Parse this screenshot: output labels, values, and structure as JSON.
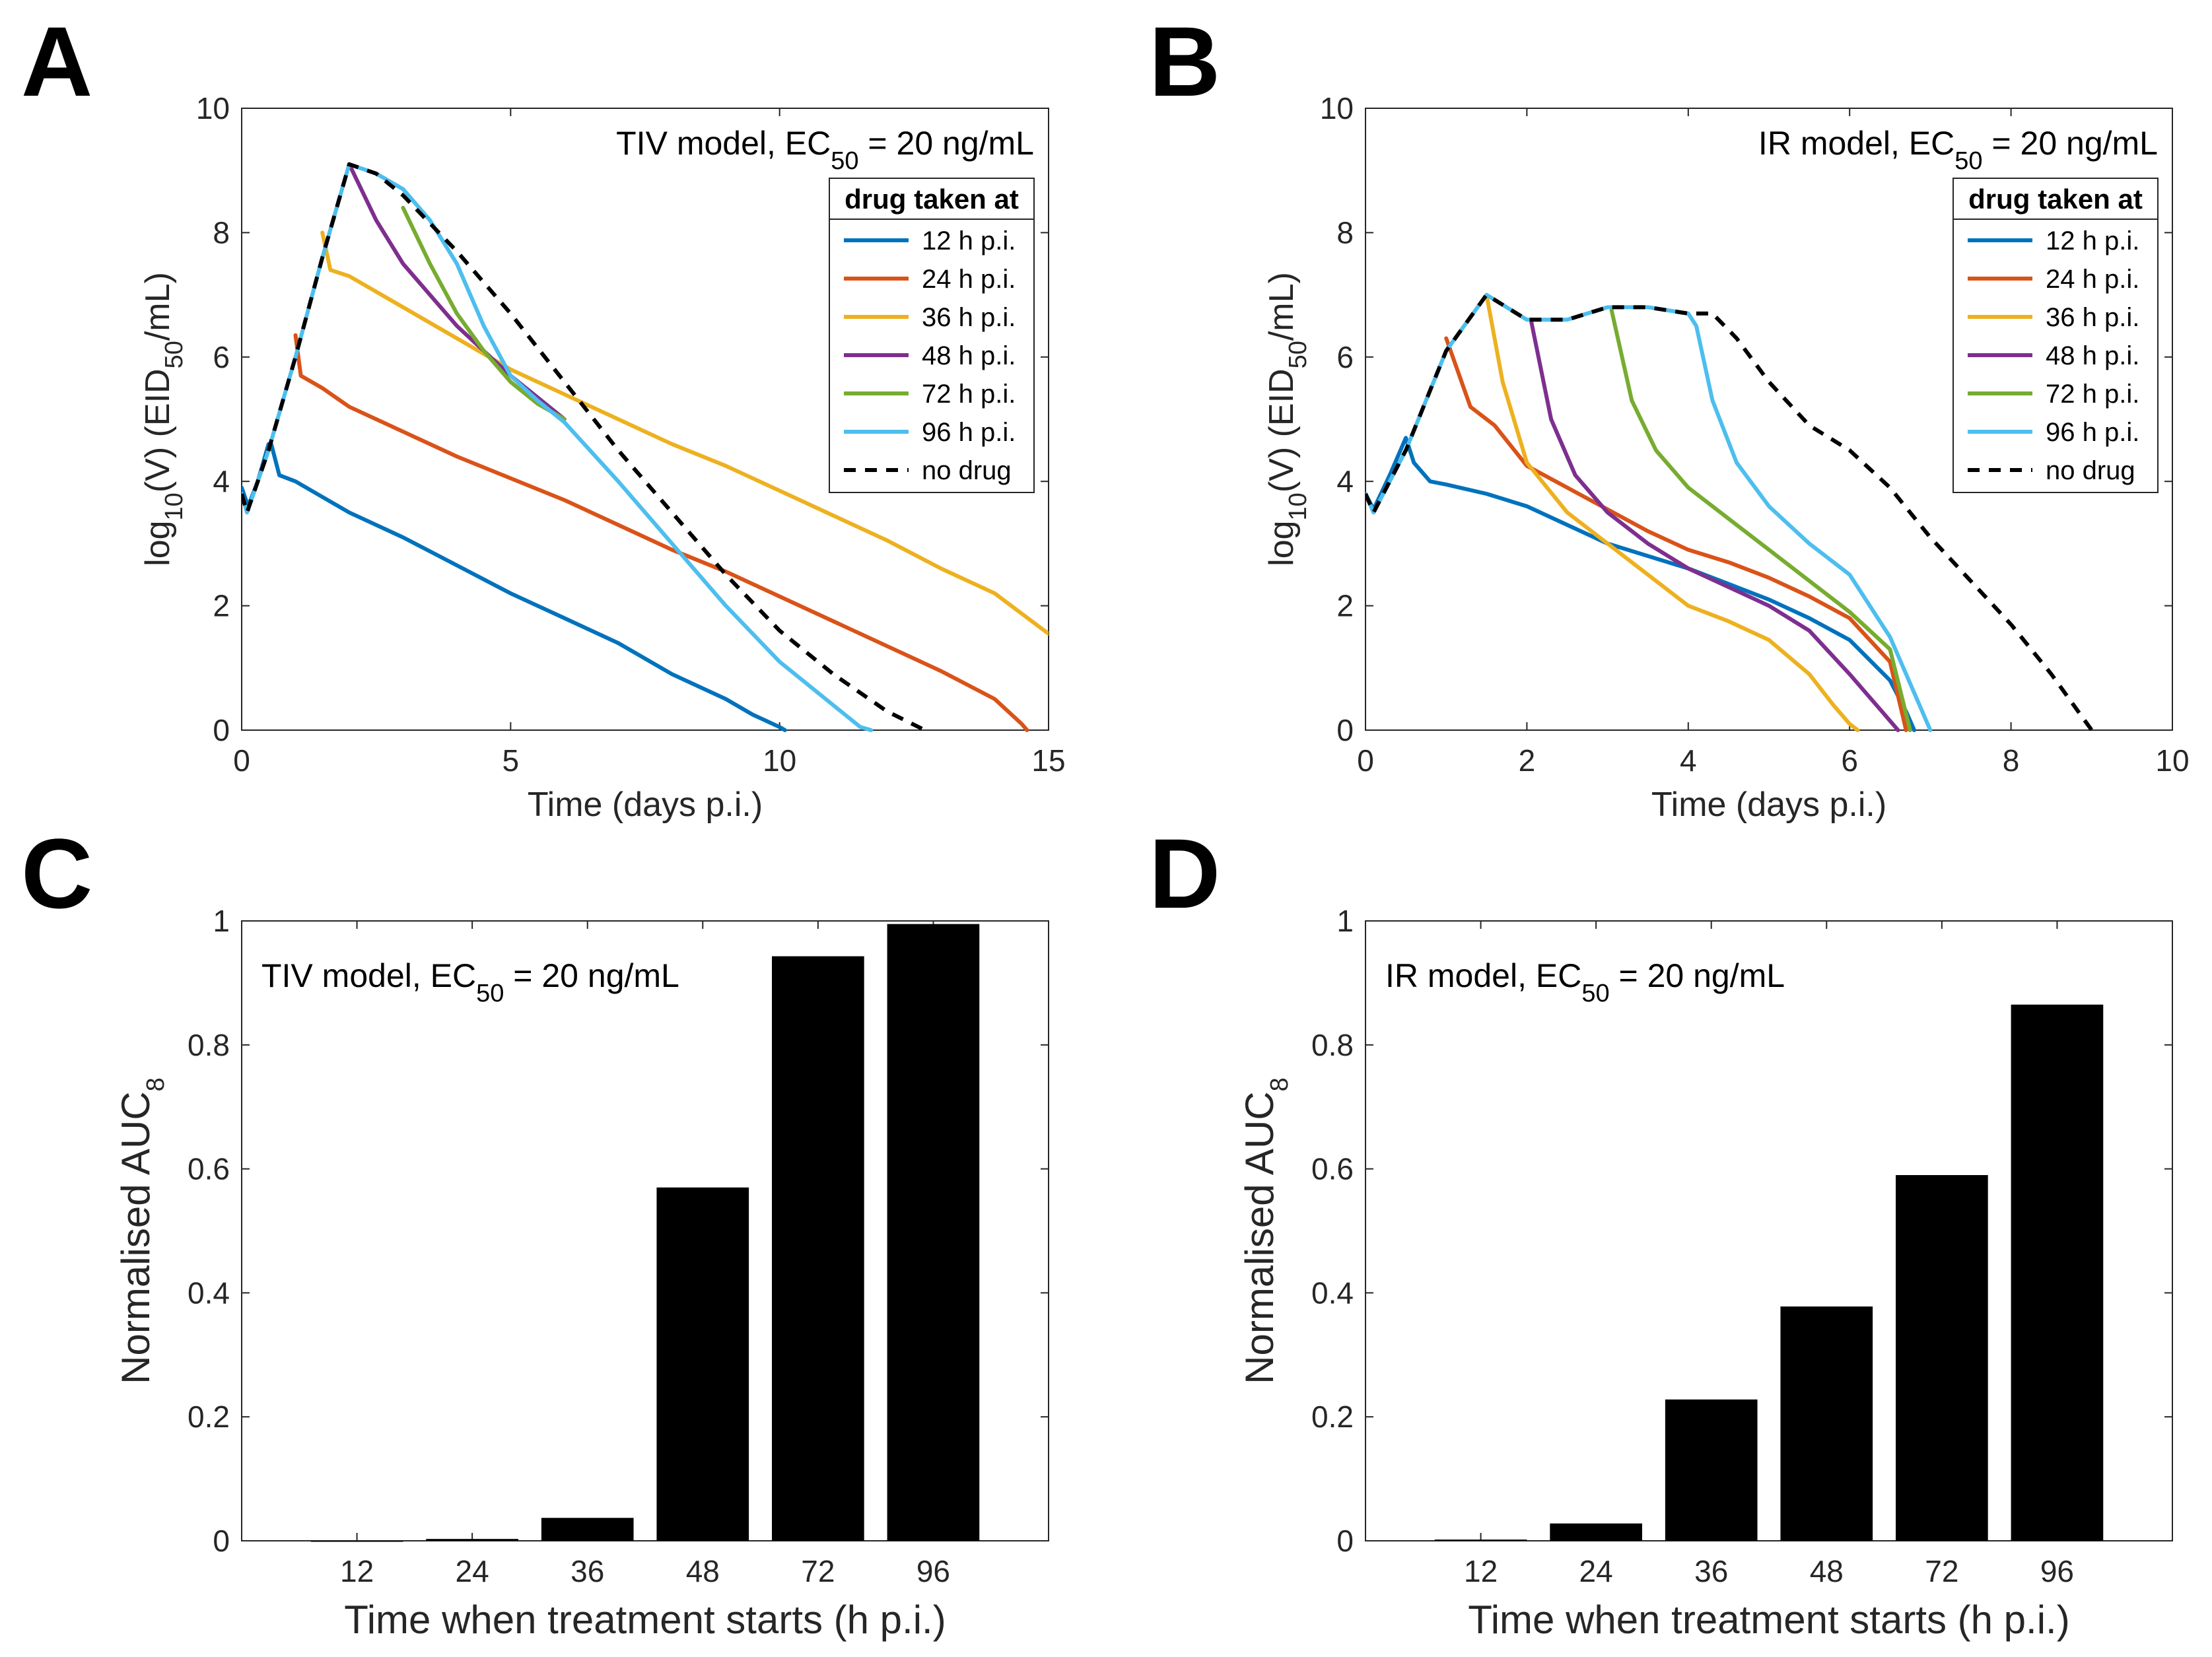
{
  "panel_labels": [
    "A",
    "B",
    "C",
    "D"
  ],
  "chart_data": [
    {
      "id": "A",
      "type": "line",
      "annotation": {
        "pre": "TIV model, EC",
        "sub": "50",
        "post": " = 20 ng/mL"
      },
      "xlabel": "Time (days p.i.)",
      "ylabel": {
        "pre": "log",
        "sub1": "10",
        "mid": "(V) (EID",
        "sub2": "50",
        "post": "/mL)"
      },
      "xlim": [
        0,
        15
      ],
      "ylim": [
        0,
        10
      ],
      "xticks": [
        0,
        5,
        10,
        15
      ],
      "yticks": [
        0,
        2,
        4,
        6,
        8,
        10
      ],
      "legend": {
        "title": "drug taken at",
        "position": "upper-right"
      },
      "series": [
        {
          "name": "12 h p.i.",
          "color": "#0072BD",
          "dash": false,
          "x": [
            0,
            0.12,
            0.3,
            0.5,
            0.55,
            0.7,
            1,
            2,
            3,
            4,
            5,
            6,
            7,
            8,
            9,
            9.5,
            10,
            10.1
          ],
          "y": [
            3.9,
            3.6,
            4,
            4.6,
            4.6,
            4.1,
            4,
            3.5,
            3.1,
            2.65,
            2.2,
            1.8,
            1.4,
            0.9,
            0.5,
            0.25,
            0.05,
            0
          ]
        },
        {
          "name": "24 h p.i.",
          "color": "#D95319",
          "dash": false,
          "x": [
            1,
            1.1,
            1.5,
            2,
            3,
            4,
            5,
            6,
            7,
            8,
            9,
            10,
            11,
            12,
            13,
            14,
            14.5,
            14.6
          ],
          "y": [
            6.35,
            5.7,
            5.5,
            5.2,
            4.8,
            4.4,
            4.05,
            3.7,
            3.3,
            2.9,
            2.55,
            2.15,
            1.75,
            1.35,
            0.95,
            0.5,
            0.1,
            0
          ]
        },
        {
          "name": "36 h p.i.",
          "color": "#EDB120",
          "dash": false,
          "x": [
            1.5,
            1.65,
            2,
            3,
            4,
            5,
            6,
            7,
            8,
            9,
            10,
            11,
            12,
            13,
            14,
            15
          ],
          "y": [
            8,
            7.4,
            7.3,
            6.8,
            6.3,
            5.8,
            5.4,
            5.0,
            4.6,
            4.25,
            3.85,
            3.45,
            3.05,
            2.6,
            2.2,
            1.55
          ]
        },
        {
          "name": "48 h p.i.",
          "color": "#7E2F8E",
          "dash": false,
          "x": [
            2,
            2.5,
            3,
            3.5,
            4,
            4.5,
            5,
            5.5,
            6
          ],
          "y": [
            9.1,
            8.2,
            7.5,
            7.0,
            6.5,
            6.1,
            5.7,
            5.35,
            5.0
          ]
        },
        {
          "name": "72 h p.i.",
          "color": "#77AC30",
          "dash": false,
          "x": [
            3,
            3.5,
            4,
            4.5,
            5,
            5.5,
            6
          ],
          "y": [
            8.4,
            7.5,
            6.7,
            6.1,
            5.6,
            5.25,
            5.0
          ]
        },
        {
          "name": "96 h p.i.",
          "color": "#4DBEEE",
          "dash": false,
          "x": [
            0,
            0.1,
            0.5,
            1,
            1.5,
            2,
            2.5,
            3,
            3.5,
            4,
            4.5,
            5,
            5.5,
            6,
            7,
            8,
            9,
            10,
            11,
            11.5,
            11.7
          ],
          "y": [
            3.8,
            3.5,
            4.5,
            6,
            7.6,
            9.1,
            8.95,
            8.7,
            8.2,
            7.5,
            6.5,
            5.7,
            5.3,
            4.95,
            4.0,
            3.0,
            2.0,
            1.1,
            0.4,
            0.05,
            0
          ]
        },
        {
          "name": "no drug",
          "color": "#000000",
          "dash": true,
          "x": [
            0,
            0.1,
            0.5,
            1,
            1.5,
            2,
            2.5,
            3,
            3.5,
            4,
            5,
            6,
            7,
            8,
            9,
            10,
            11,
            12,
            12.7
          ],
          "y": [
            3.8,
            3.5,
            4.5,
            6,
            7.6,
            9.1,
            8.95,
            8.6,
            8.15,
            7.7,
            6.7,
            5.6,
            4.5,
            3.5,
            2.5,
            1.6,
            0.9,
            0.3,
            0
          ]
        }
      ]
    },
    {
      "id": "B",
      "type": "line",
      "annotation": {
        "pre": "IR model, EC",
        "sub": "50",
        "post": " = 20 ng/mL"
      },
      "xlabel": "Time (days p.i.)",
      "ylabel": {
        "pre": "log",
        "sub1": "10",
        "mid": "(V) (EID",
        "sub2": "50",
        "post": "/mL)"
      },
      "xlim": [
        0,
        10
      ],
      "ylim": [
        0,
        10
      ],
      "xticks": [
        0,
        2,
        4,
        6,
        8,
        10
      ],
      "yticks": [
        0,
        2,
        4,
        6,
        8,
        10
      ],
      "legend": {
        "title": "drug taken at",
        "position": "upper-right"
      },
      "series": [
        {
          "name": "12 h p.i.",
          "color": "#0072BD",
          "dash": false,
          "x": [
            0,
            0.1,
            0.3,
            0.5,
            0.6,
            0.8,
            1,
            1.5,
            2,
            2.5,
            3,
            3.5,
            4,
            4.5,
            5,
            5.5,
            6,
            6.5,
            6.7,
            6.8
          ],
          "y": [
            3.8,
            3.55,
            4.1,
            4.7,
            4.3,
            4.0,
            3.95,
            3.8,
            3.6,
            3.3,
            3.0,
            2.8,
            2.6,
            2.35,
            2.1,
            1.8,
            1.45,
            0.8,
            0.3,
            0
          ]
        },
        {
          "name": "24 h p.i.",
          "color": "#D95319",
          "dash": false,
          "x": [
            1,
            1.3,
            1.6,
            2,
            2.5,
            3,
            3.5,
            4,
            4.5,
            5,
            5.5,
            6,
            6.5,
            6.7
          ],
          "y": [
            6.3,
            5.2,
            4.9,
            4.25,
            3.9,
            3.55,
            3.2,
            2.9,
            2.7,
            2.45,
            2.15,
            1.8,
            1.1,
            0
          ]
        },
        {
          "name": "36 h p.i.",
          "color": "#EDB120",
          "dash": false,
          "x": [
            1.5,
            1.7,
            2,
            2.5,
            3,
            3.5,
            4,
            4.5,
            5,
            5.5,
            5.8,
            6,
            6.1
          ],
          "y": [
            7.0,
            5.6,
            4.3,
            3.5,
            3.0,
            2.5,
            2.0,
            1.75,
            1.45,
            0.9,
            0.4,
            0.1,
            0
          ]
        },
        {
          "name": "48 h p.i.",
          "color": "#7E2F8E",
          "dash": false,
          "x": [
            2.05,
            2.3,
            2.6,
            3,
            3.5,
            4,
            4.5,
            5,
            5.5,
            6,
            6.4,
            6.6
          ],
          "y": [
            6.6,
            5.0,
            4.1,
            3.5,
            3.0,
            2.6,
            2.3,
            2.0,
            1.6,
            0.9,
            0.3,
            0
          ]
        },
        {
          "name": "72 h p.i.",
          "color": "#77AC30",
          "dash": false,
          "x": [
            3.05,
            3.3,
            3.6,
            4,
            4.5,
            5,
            5.5,
            6,
            6.5,
            6.75
          ],
          "y": [
            6.75,
            5.3,
            4.5,
            3.9,
            3.4,
            2.9,
            2.4,
            1.9,
            1.3,
            0
          ]
        },
        {
          "name": "96 h p.i.",
          "color": "#4DBEEE",
          "dash": false,
          "x": [
            0,
            0.1,
            0.5,
            1,
            1.5,
            2,
            2.5,
            3,
            3.5,
            4,
            4.1,
            4.3,
            4.6,
            5,
            5.5,
            6,
            6.5,
            6.8,
            7.0
          ],
          "y": [
            3.8,
            3.5,
            4.5,
            6.1,
            7.0,
            6.6,
            6.6,
            6.8,
            6.8,
            6.7,
            6.5,
            5.3,
            4.3,
            3.6,
            3.0,
            2.5,
            1.5,
            0.6,
            0
          ]
        },
        {
          "name": "no drug",
          "color": "#000000",
          "dash": true,
          "x": [
            0,
            0.1,
            0.5,
            1,
            1.5,
            2,
            2.5,
            3,
            3.5,
            4,
            4.3,
            4.6,
            5,
            5.5,
            6,
            6.5,
            7,
            7.5,
            8,
            8.5,
            9
          ],
          "y": [
            3.8,
            3.5,
            4.5,
            6.1,
            7.0,
            6.6,
            6.6,
            6.8,
            6.8,
            6.7,
            6.7,
            6.3,
            5.6,
            4.9,
            4.5,
            3.9,
            3.1,
            2.4,
            1.7,
            0.9,
            0
          ]
        }
      ]
    },
    {
      "id": "C",
      "type": "bar",
      "annotation": {
        "pre": "TIV model, EC",
        "sub": "50",
        "post": " = 20 ng/mL"
      },
      "title": "",
      "xlabel": "Time when treatment starts (h p.i.)",
      "ylabel": {
        "pre": "Normalised AUC",
        "sub": "8"
      },
      "categories": [
        "12",
        "24",
        "36",
        "48",
        "72",
        "96"
      ],
      "values": [
        0.0,
        0.003,
        0.037,
        0.57,
        0.943,
        0.995
      ],
      "ylim": [
        0,
        1
      ],
      "yticks": [
        0,
        0.2,
        0.4,
        0.6,
        0.8,
        1
      ],
      "ytick_labels": [
        "0",
        "0.2",
        "0.4",
        "0.6",
        "0.8",
        "1"
      ],
      "bar_color": "#000000"
    },
    {
      "id": "D",
      "type": "bar",
      "annotation": {
        "pre": "IR model, EC",
        "sub": "50",
        "post": " = 20 ng/mL"
      },
      "title": "",
      "xlabel": "Time when treatment starts (h p.i.)",
      "ylabel": {
        "pre": "Normalised AUC",
        "sub": "8"
      },
      "categories": [
        "12",
        "24",
        "36",
        "48",
        "72",
        "96"
      ],
      "values": [
        0.002,
        0.028,
        0.228,
        0.378,
        0.59,
        0.865
      ],
      "ylim": [
        0,
        1
      ],
      "yticks": [
        0,
        0.2,
        0.4,
        0.6,
        0.8,
        1
      ],
      "ytick_labels": [
        "0",
        "0.2",
        "0.4",
        "0.6",
        "0.8",
        "1"
      ],
      "bar_color": "#000000"
    }
  ]
}
